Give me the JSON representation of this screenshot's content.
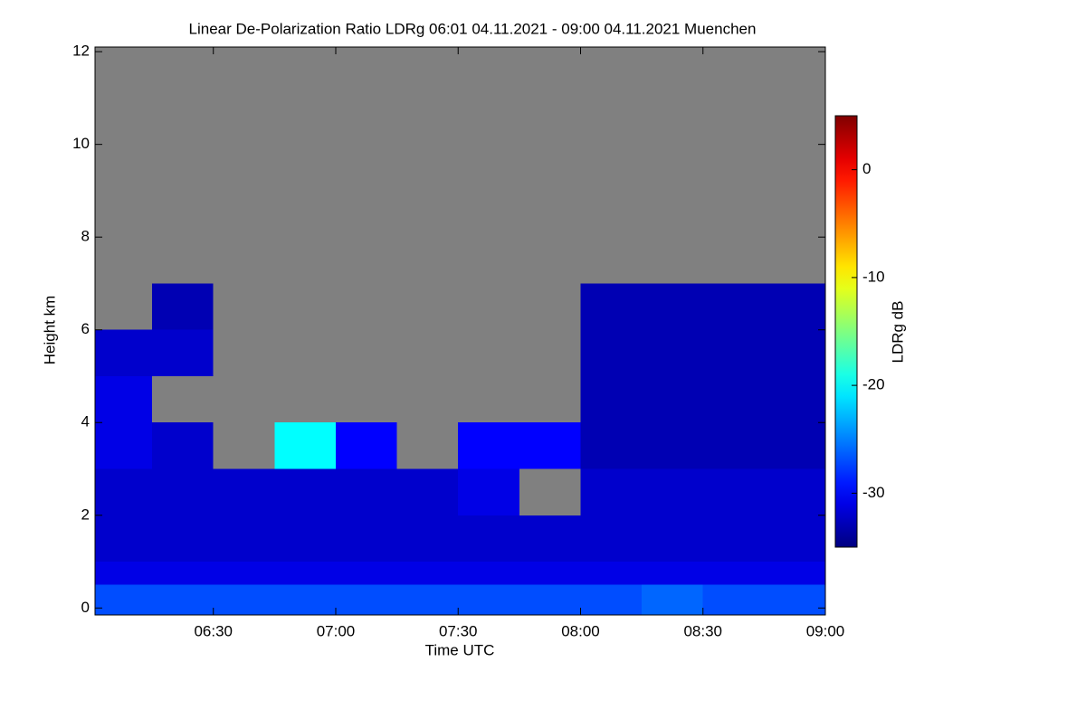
{
  "chart_data": {
    "type": "heatmap",
    "title": "Linear De-Polarization Ratio LDRg   06:01 04.11.2021 - 09:00 04.11.2021 Muenchen",
    "xlabel": "Time UTC",
    "ylabel": "Height km",
    "colorbar_label": "LDRg dB",
    "xlim": [
      6.0167,
      9.0
    ],
    "xticks": [
      {
        "value": 6.5,
        "label": "06:30"
      },
      {
        "value": 7.0,
        "label": "07:00"
      },
      {
        "value": 7.5,
        "label": "07:30"
      },
      {
        "value": 8.0,
        "label": "08:00"
      },
      {
        "value": 8.5,
        "label": "08:30"
      },
      {
        "value": 9.0,
        "label": "09:00"
      }
    ],
    "ylim": [
      -0.15,
      12.1
    ],
    "yticks": [
      0,
      2,
      4,
      6,
      8,
      10,
      12
    ],
    "clim": [
      -35,
      5
    ],
    "cticks": [
      0,
      -10,
      -20,
      -30
    ],
    "colormap": "jet",
    "nodata_color": "#808080",
    "x_edges": [
      6.0167,
      6.25,
      6.5,
      6.75,
      7.0,
      7.25,
      7.5,
      7.75,
      8.0,
      8.25,
      8.5,
      8.75,
      9.0
    ],
    "y_edges": [
      -0.15,
      0.5,
      1,
      2,
      3,
      4,
      5,
      6,
      7
    ],
    "z": [
      [
        -27,
        -27,
        -27,
        -27,
        -27,
        -27,
        -27,
        -27,
        -27,
        -26,
        -27,
        -27
      ],
      [
        -31,
        -31,
        -31,
        -31,
        -31,
        -31,
        -31,
        -31,
        -31,
        -31,
        -31,
        -31
      ],
      [
        -32,
        -32,
        -32,
        -32,
        -32,
        -32,
        -32,
        -32,
        -32,
        -32,
        -32,
        -32
      ],
      [
        -32,
        -32,
        -32,
        -32,
        -32,
        -32,
        -31,
        null,
        -32,
        -32,
        -32,
        -32
      ],
      [
        -31,
        -32,
        null,
        -20,
        -30,
        null,
        -30,
        -30,
        -33,
        -33,
        -33,
        -33
      ],
      [
        -31,
        null,
        null,
        null,
        null,
        null,
        null,
        null,
        -33,
        -33,
        -33,
        -33
      ],
      [
        -32,
        -32,
        null,
        null,
        null,
        null,
        null,
        null,
        -33,
        -33,
        -33,
        -33
      ],
      [
        null,
        -33,
        null,
        null,
        null,
        null,
        null,
        null,
        -33,
        -33,
        -33,
        -33
      ]
    ]
  }
}
